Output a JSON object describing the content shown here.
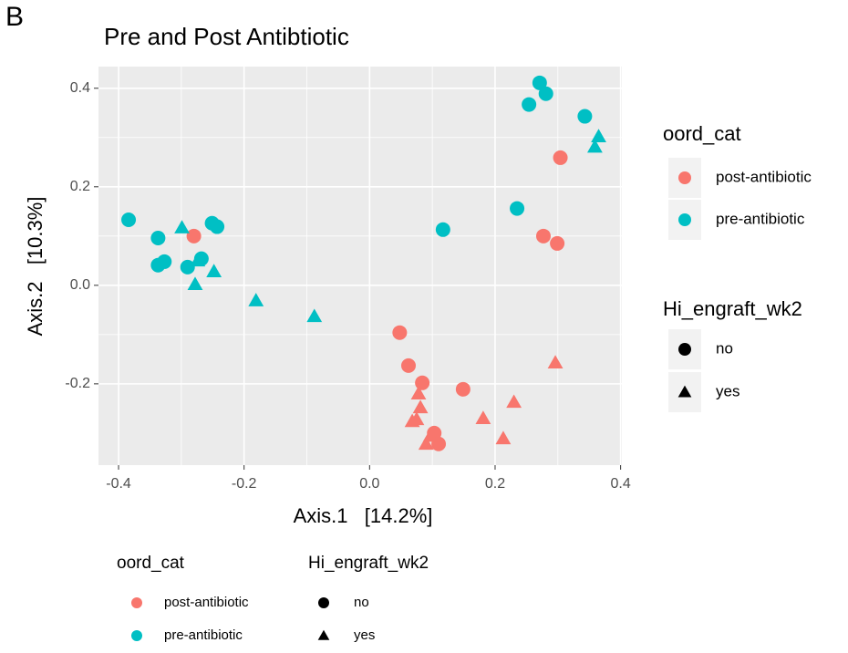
{
  "chart_data": {
    "type": "scatter",
    "panel_label": "B",
    "title": "Pre and Post Antibtiotic",
    "x_label": "Axis.1   [14.2%]",
    "y_label": "Axis.2   [10.3%]",
    "xlim": [
      -0.432,
      0.402
    ],
    "ylim": [
      -0.365,
      0.444
    ],
    "xticks": [
      -0.4,
      -0.2,
      {
        "value": 0,
        "label": "0.0"
      },
      0.2,
      0.4
    ],
    "yticks": [
      -0.2,
      {
        "value": 0,
        "label": "0.0"
      },
      0.2,
      0.4
    ],
    "grid": true,
    "series": [
      {
        "color": "#f8766d",
        "marker": "circle",
        "x": [
          0.304,
          0.277,
          0.299,
          -0.28,
          0.048,
          0.062,
          0.084,
          0.149,
          0.103,
          0.11
        ],
        "y": [
          0.259,
          0.1,
          0.085,
          0.1,
          -0.096,
          -0.163,
          -0.198,
          -0.211,
          -0.3,
          -0.322
        ]
      },
      {
        "color": "#f8766d",
        "marker": "triangle",
        "x": [
          0.296,
          0.23,
          0.181,
          0.213,
          0.078,
          0.081,
          0.075,
          0.068,
          0.09,
          0.097
        ],
        "y": [
          -0.157,
          -0.237,
          -0.27,
          -0.311,
          -0.22,
          -0.248,
          -0.272,
          -0.276,
          -0.322,
          -0.306
        ]
      },
      {
        "color": "#00bfc4",
        "marker": "circle",
        "x": [
          0.271,
          0.281,
          0.254,
          0.343,
          0.235,
          0.117,
          -0.384,
          -0.337,
          -0.337,
          -0.327,
          -0.29,
          -0.251,
          -0.243,
          -0.268
        ],
        "y": [
          0.411,
          0.389,
          0.367,
          0.343,
          0.156,
          0.113,
          0.133,
          0.096,
          0.041,
          0.048,
          0.037,
          0.126,
          0.119,
          0.054
        ]
      },
      {
        "color": "#00bfc4",
        "marker": "triangle",
        "x": [
          0.365,
          0.359,
          -0.299,
          -0.274,
          -0.248,
          -0.278,
          -0.181,
          -0.088
        ],
        "y": [
          0.302,
          0.281,
          0.117,
          0.05,
          0.028,
          0.002,
          -0.031,
          -0.063
        ]
      }
    ],
    "legends": [
      {
        "position": "right",
        "groups": [
          {
            "title": "oord_cat",
            "entries": [
              {
                "label": "post-antibiotic",
                "color": "#f8766d",
                "marker": "circle"
              },
              {
                "label": "pre-antibiotic",
                "color": "#00bfc4",
                "marker": "circle"
              }
            ]
          },
          {
            "title": "Hi_engraft_wk2",
            "entries": [
              {
                "label": "no",
                "color": "#000000",
                "marker": "circle"
              },
              {
                "label": "yes",
                "color": "#000000",
                "marker": "triangle"
              }
            ]
          }
        ]
      },
      {
        "position": "bottom",
        "groups": [
          {
            "title": "oord_cat",
            "entries": [
              {
                "label": "post-antibiotic",
                "color": "#f8766d",
                "marker": "circle"
              },
              {
                "label": "pre-antibiotic",
                "color": "#00bfc4",
                "marker": "circle"
              }
            ]
          },
          {
            "title": "Hi_engraft_wk2",
            "entries": [
              {
                "label": "no",
                "color": "#000000",
                "marker": "circle"
              },
              {
                "label": "yes",
                "color": "#000000",
                "marker": "triangle"
              }
            ]
          }
        ]
      }
    ]
  }
}
